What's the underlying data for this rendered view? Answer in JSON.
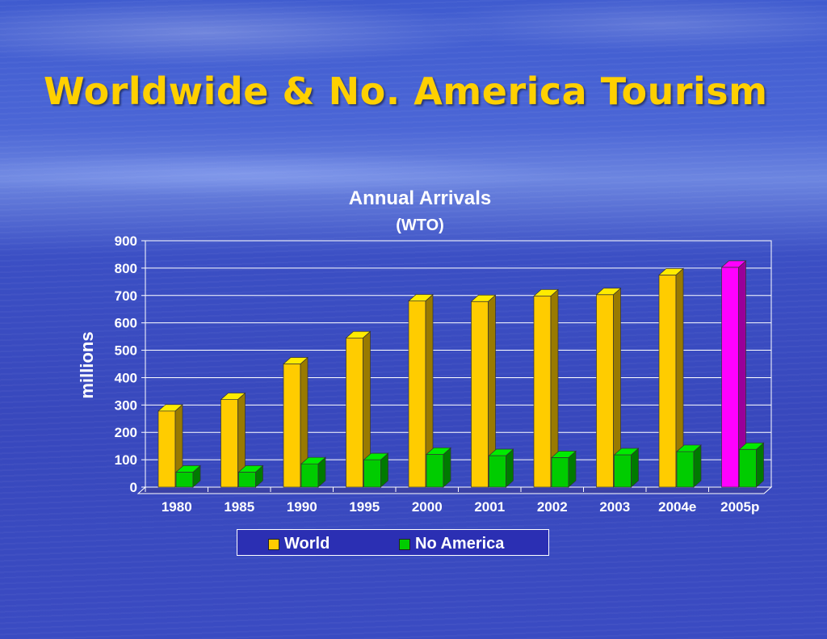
{
  "slide": {
    "title": "Worldwide & No. America Tourism"
  },
  "chart_data": {
    "type": "bar",
    "title": "Annual Arrivals",
    "subtitle": "(WTO)",
    "ylabel": "millions",
    "xlabel": "",
    "ylim": [
      0,
      900
    ],
    "yticks": [
      0,
      100,
      200,
      300,
      400,
      500,
      600,
      700,
      800,
      900
    ],
    "grid": true,
    "legend_position": "bottom",
    "categories": [
      "1980",
      "1985",
      "1990",
      "1995",
      "2000",
      "2001",
      "2002",
      "2003",
      "2004e",
      "2005p"
    ],
    "series": [
      {
        "name": "World",
        "values": [
          278,
          320,
          450,
          545,
          680,
          678,
          698,
          703,
          775,
          803
        ],
        "color": "#ffcc00",
        "highlight": {
          "index": 9,
          "color": "#ff00ff"
        }
      },
      {
        "name": "No America",
        "values": [
          55,
          55,
          85,
          100,
          120,
          115,
          108,
          118,
          130,
          138
        ],
        "color": "#00cc00"
      }
    ]
  },
  "colors": {
    "title": "#ffd000",
    "text": "#ffffff",
    "world": "#ffcc00",
    "no_america": "#00cc00",
    "highlight": "#ff00ff"
  }
}
